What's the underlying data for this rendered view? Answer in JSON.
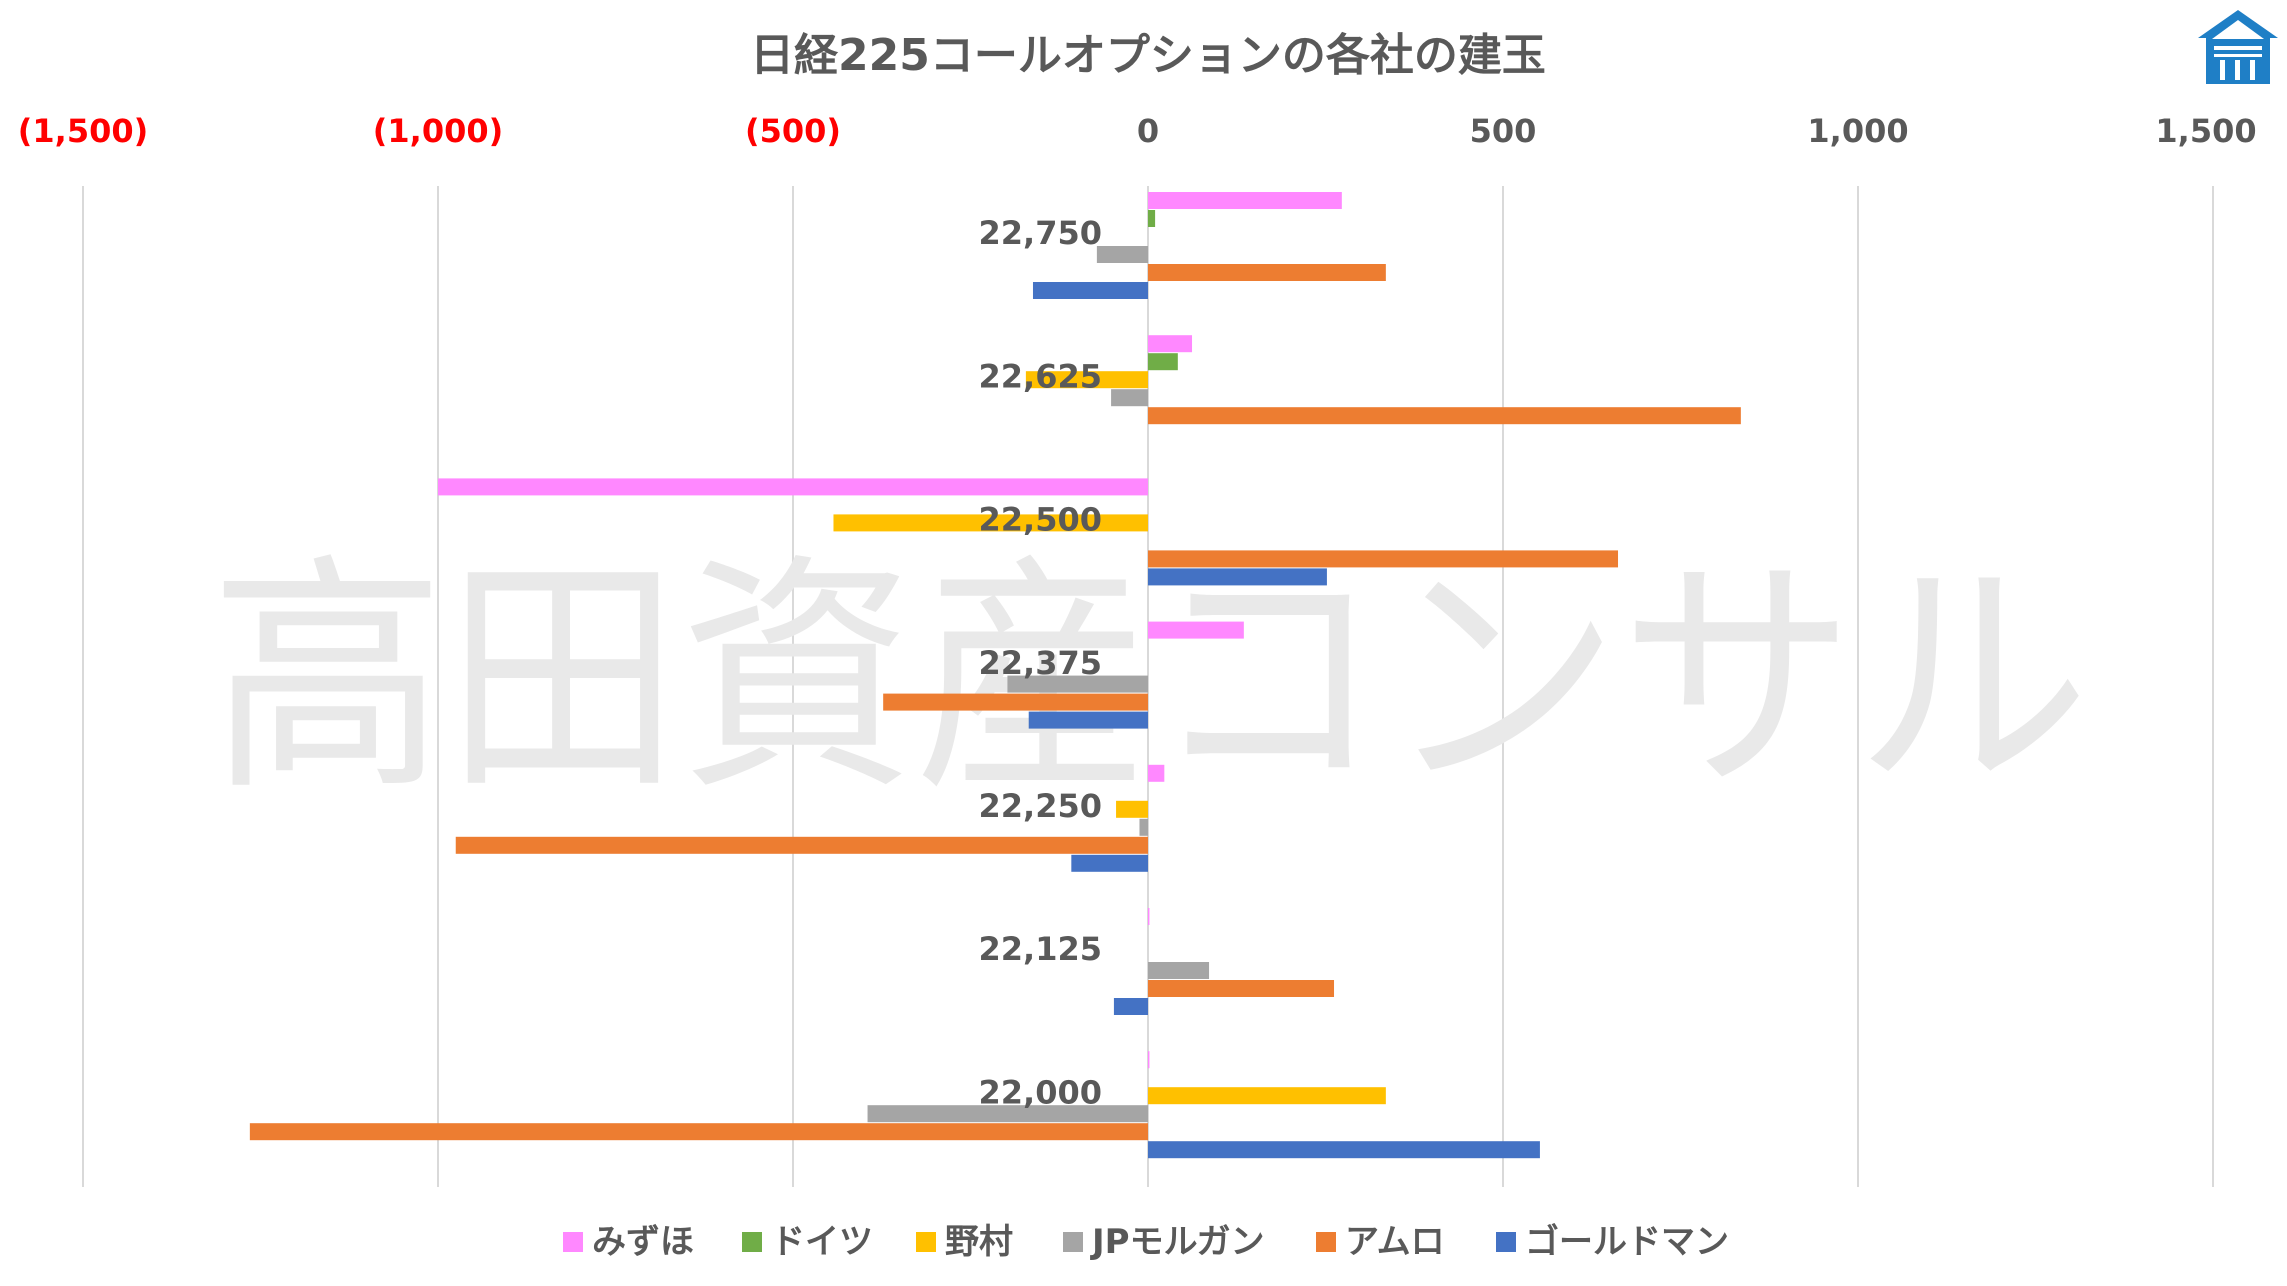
{
  "chart_data": {
    "type": "bar",
    "orientation": "horizontal",
    "title": "日経225コールオプションの各社の建玉",
    "watermark": "高田資産コンサル",
    "xlim": [
      -1500,
      1500
    ],
    "x_ticks": [
      -1500,
      -1000,
      -500,
      0,
      500,
      1000,
      1500
    ],
    "x_tick_labels": [
      "(1,500)",
      "(1,000)",
      "(500)",
      "0",
      "500",
      "1,000",
      "1,500"
    ],
    "negative_tick_color": "#ff0000",
    "positive_tick_color": "#595959",
    "grid": true,
    "legend_position": "bottom",
    "categories": [
      "22,750",
      "22,625",
      "22,500",
      "22,375",
      "22,250",
      "22,125",
      "22,000"
    ],
    "series": [
      {
        "name": "みずほ",
        "color": "#ff88ff",
        "values": [
          273,
          62,
          -1000,
          135,
          23,
          2,
          2
        ]
      },
      {
        "name": "ドイツ",
        "color": "#70ad47",
        "values": [
          10,
          42,
          0,
          0,
          0,
          0,
          0
        ]
      },
      {
        "name": "野村",
        "color": "#ffc000",
        "values": [
          0,
          -172,
          -443,
          0,
          -45,
          0,
          335
        ]
      },
      {
        "name": "JPモルガン",
        "color": "#a5a5a5",
        "values": [
          -72,
          -52,
          0,
          -198,
          -12,
          86,
          -395
        ]
      },
      {
        "name": "アムロ",
        "color": "#ed7d31",
        "values": [
          335,
          835,
          662,
          -373,
          -975,
          262,
          -1265
        ]
      },
      {
        "name": "ゴールドマン",
        "color": "#4472c4",
        "values": [
          -162,
          0,
          252,
          -168,
          -108,
          -48,
          552
        ]
      }
    ]
  },
  "logo": {
    "name": "house-logo",
    "color": "#1f7fc6"
  }
}
